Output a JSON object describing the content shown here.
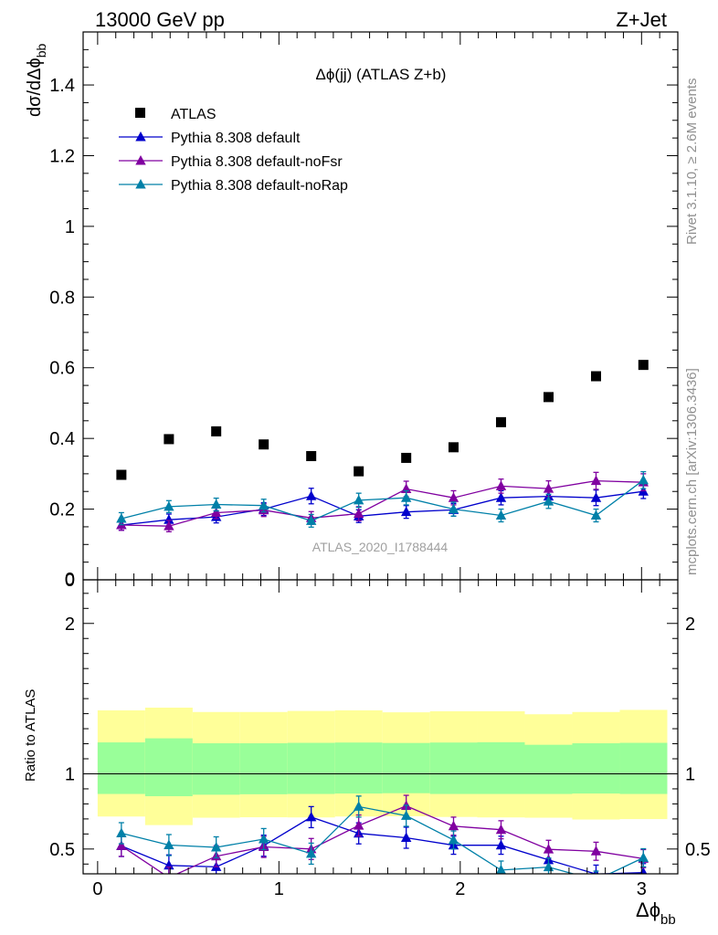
{
  "header": {
    "left_label": "13000 GeV pp",
    "right_label": "Z+Jet",
    "plot_title": "Δϕ(jj) (ATLAS Z+b)",
    "analysis_id": "ATLAS_2020_I1788444",
    "side_text_rivet": "Rivet 3.1.10, ≥ 2.6M events",
    "side_text_mcplots": "mcplots.cern.ch [arXiv:1306.3436]"
  },
  "colors": {
    "atlas": "#000000",
    "default": "#0000cc",
    "noFsr": "#8000a0",
    "noRap": "#0080a8",
    "band_inner": "#99ff99",
    "band_outer": "#ffff99"
  },
  "chart_data": [
    {
      "type": "scatter",
      "panel": "main",
      "ylabel": "dσ/dΔϕ_bb",
      "xlim": [
        -0.08,
        3.2
      ],
      "ylim": [
        0,
        1.55
      ],
      "y_ticks": [
        0,
        0.2,
        0.4,
        0.6,
        0.8,
        1,
        1.2,
        1.4
      ],
      "y_tick_labels": [
        "0",
        "0.2",
        "0.4",
        "0.6",
        "0.8",
        "1",
        "1.2",
        "1.4"
      ],
      "legend_position": "top-left",
      "x": [
        0.131,
        0.393,
        0.654,
        0.916,
        1.178,
        1.44,
        1.702,
        1.963,
        2.225,
        2.487,
        2.749,
        3.01
      ],
      "series": [
        {
          "name": "ATLAS",
          "marker": "square",
          "values": [
            0.297,
            0.398,
            0.42,
            0.383,
            0.35,
            0.307,
            0.345,
            0.375,
            0.446,
            0.517,
            0.576,
            0.608
          ]
        },
        {
          "name": "Pythia 8.308 default",
          "marker": "triangle",
          "values": [
            0.155,
            0.17,
            0.178,
            0.2,
            0.237,
            0.18,
            0.192,
            0.198,
            0.232,
            0.236,
            0.232,
            0.25
          ],
          "errors": [
            0.015,
            0.016,
            0.017,
            0.018,
            0.022,
            0.018,
            0.018,
            0.018,
            0.02,
            0.02,
            0.022,
            0.02
          ]
        },
        {
          "name": "Pythia 8.308 default-noFsr",
          "marker": "triangle",
          "values": [
            0.155,
            0.152,
            0.19,
            0.197,
            0.175,
            0.187,
            0.257,
            0.232,
            0.265,
            0.258,
            0.28,
            0.276
          ],
          "errors": [
            0.015,
            0.016,
            0.017,
            0.018,
            0.018,
            0.02,
            0.022,
            0.02,
            0.02,
            0.022,
            0.024,
            0.024
          ]
        },
        {
          "name": "Pythia 8.308 default-noRap",
          "marker": "triangle",
          "values": [
            0.173,
            0.207,
            0.213,
            0.21,
            0.167,
            0.225,
            0.232,
            0.2,
            0.182,
            0.222,
            0.182,
            0.282
          ],
          "errors": [
            0.017,
            0.017,
            0.018,
            0.018,
            0.018,
            0.02,
            0.02,
            0.02,
            0.018,
            0.02,
            0.018,
            0.024
          ]
        }
      ]
    },
    {
      "type": "line",
      "panel": "ratio",
      "xlabel": "Δϕ_bb",
      "ylabel": "Ratio to ATLAS",
      "xlim": [
        -0.08,
        3.2
      ],
      "ylim": [
        0.335,
        2.29
      ],
      "x_ticks": [
        0,
        1,
        2,
        3
      ],
      "x_tick_labels": [
        "0",
        "1",
        "2",
        "3"
      ],
      "y_ticks": [
        0.5,
        1,
        2
      ],
      "y_tick_labels": [
        "0.5",
        "1",
        "2"
      ],
      "reference_line": 1,
      "bin_edges": [
        0,
        0.262,
        0.524,
        0.785,
        1.047,
        1.309,
        1.571,
        1.833,
        2.094,
        2.356,
        2.618,
        2.88,
        3.142
      ],
      "band_inner": {
        "low": [
          0.866,
          0.851,
          0.861,
          0.864,
          0.866,
          0.869,
          0.871,
          0.866,
          0.866,
          0.866,
          0.869,
          0.866
        ],
        "high": [
          1.209,
          1.236,
          1.203,
          1.203,
          1.206,
          1.208,
          1.205,
          1.208,
          1.21,
          1.193,
          1.203,
          1.206
        ]
      },
      "band_outer": {
        "low": [
          0.716,
          0.659,
          0.708,
          0.711,
          0.71,
          0.716,
          0.718,
          0.713,
          0.71,
          0.708,
          0.696,
          0.699
        ],
        "high": [
          1.422,
          1.44,
          1.411,
          1.411,
          1.418,
          1.422,
          1.409,
          1.416,
          1.416,
          1.396,
          1.411,
          1.425
        ]
      },
      "x": [
        0.131,
        0.393,
        0.654,
        0.916,
        1.178,
        1.44,
        1.702,
        1.963,
        2.225,
        2.487,
        2.749,
        3.01
      ],
      "series": [
        {
          "name": "Pythia 8.308 default",
          "values": [
            0.52,
            0.391,
            0.381,
            0.522,
            0.712,
            0.604,
            0.575,
            0.525,
            0.525,
            0.427,
            0.333,
            0.343
          ],
          "errors": [
            0.07,
            0.07,
            0.07,
            0.07,
            0.07,
            0.07,
            0.07,
            0.06,
            0.06,
            0.06,
            0.06,
            0.06
          ]
        },
        {
          "name": "Pythia 8.308 default-noFsr",
          "values": [
            0.521,
            0.31,
            0.452,
            0.514,
            0.5,
            0.656,
            0.787,
            0.652,
            0.628,
            0.498,
            0.485,
            0.436
          ],
          "errors": [
            0.07,
            0.07,
            0.07,
            0.07,
            0.07,
            0.07,
            0.07,
            0.06,
            0.06,
            0.06,
            0.06,
            0.06
          ]
        },
        {
          "name": "Pythia 8.308 default-noRap",
          "values": [
            0.605,
            0.526,
            0.511,
            0.566,
            0.469,
            0.782,
            0.721,
            0.56,
            0.36,
            0.38,
            0.293,
            0.442
          ],
          "errors": [
            0.07,
            0.07,
            0.07,
            0.07,
            0.07,
            0.07,
            0.07,
            0.06,
            0.06,
            0.06,
            0.06,
            0.06
          ]
        }
      ]
    }
  ]
}
